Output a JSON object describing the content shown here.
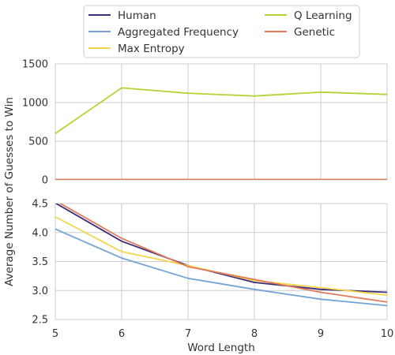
{
  "chart_data": {
    "type": "line",
    "xlabel": "Word Length",
    "ylabel": "Average Number of Guesses to Win",
    "x": [
      5,
      6,
      7,
      8,
      9,
      10
    ],
    "xlim": [
      5,
      10
    ],
    "grid": true,
    "legend_position": "top-center",
    "legend": [
      "Human",
      "Aggregated Frequency",
      "Max Entropy",
      "Q Learning",
      "Genetic"
    ],
    "series": [
      {
        "name": "Human",
        "color": "#3b2d7a",
        "values": [
          4.51,
          3.85,
          3.43,
          3.14,
          3.02,
          2.97
        ]
      },
      {
        "name": "Aggregated Frequency",
        "color": "#74a3d9",
        "values": [
          4.06,
          3.56,
          3.21,
          3.02,
          2.85,
          2.74
        ]
      },
      {
        "name": "Max Entropy",
        "color": "#f5d54a",
        "values": [
          4.27,
          3.67,
          3.43,
          3.17,
          3.05,
          2.92
        ]
      },
      {
        "name": "Q Learning",
        "color": "#b5d335",
        "values": [
          600,
          1190,
          1120,
          1085,
          1135,
          1105
        ]
      },
      {
        "name": "Genetic",
        "color": "#e07b5a",
        "values": [
          4.55,
          3.9,
          3.41,
          3.19,
          2.97,
          2.8
        ]
      }
    ],
    "panels": [
      {
        "name": "upper",
        "ylim": [
          0,
          1500
        ],
        "yticks": [
          "0",
          "500",
          "1000",
          "1500"
        ]
      },
      {
        "name": "lower",
        "ylim": [
          2.5,
          4.5
        ],
        "yticks": [
          "2.5",
          "3.0",
          "3.5",
          "4.0",
          "4.5"
        ]
      }
    ],
    "xticks": [
      "5",
      "6",
      "7",
      "8",
      "9",
      "10"
    ]
  }
}
